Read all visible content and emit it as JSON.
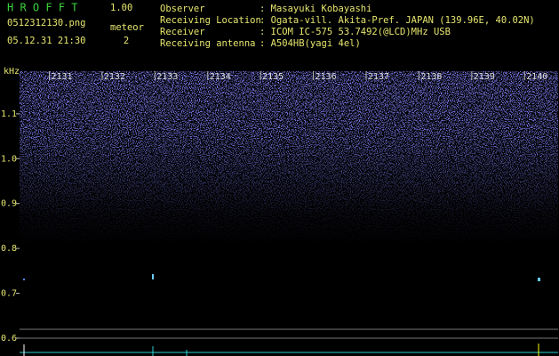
{
  "header": {
    "app": "H R O F F T",
    "version": "1.00",
    "file": "0512312130.png",
    "datetime": "05.12.31 21:30",
    "meteor_label": "meteor",
    "meteor_count": 2,
    "info": [
      {
        "label": "Observer",
        "value": ": Masayuki Kobayashi"
      },
      {
        "label": "Receiving Location",
        "value": ": Ogata-vill. Akita-Pref. JAPAN (139.96E, 40.02N)"
      },
      {
        "label": "Receiver",
        "value": ": ICOM IC-575 53.7492(@LCD)MHz USB"
      },
      {
        "label": "Receiving antenna",
        "value": ": A504HB(yagi 4el)"
      }
    ]
  },
  "chart_data": {
    "type": "spectrogram",
    "y_label": "kHz",
    "xlim": [
      2130.2,
      2140.4
    ],
    "xticks": [
      2131,
      2132,
      2133,
      2134,
      2135,
      2136,
      2137,
      2138,
      2139,
      2140
    ],
    "ylim": [
      0.59,
      1.195
    ],
    "yticks": [
      1.1,
      {
        "value": 1,
        "label": "1.0"
      },
      0.9,
      0.8,
      0.7,
      0.6
    ]
  }
}
